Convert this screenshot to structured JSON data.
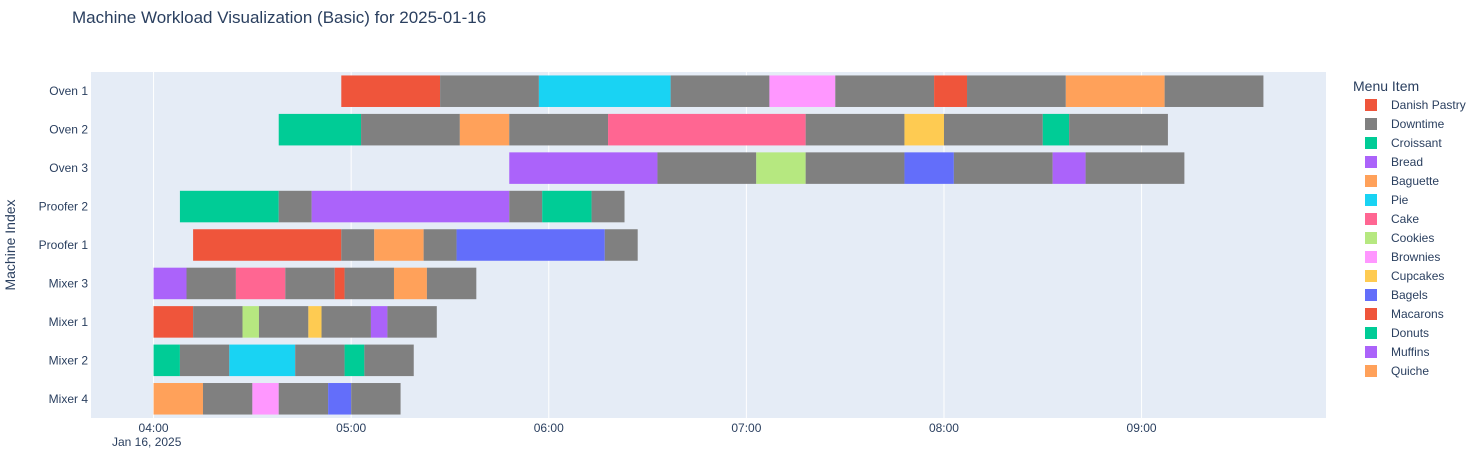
{
  "chart_data": {
    "type": "gantt",
    "title": "Machine Workload Visualization (Basic) for 2025-01-16",
    "xlabel": "",
    "ylabel": "Machine Index",
    "x_ticks": [
      "04:00",
      "05:00",
      "06:00",
      "07:00",
      "08:00",
      "09:00"
    ],
    "x_date_label": "Jan 16, 2025",
    "x_range": [
      "03:41",
      "09:56"
    ],
    "grid": true,
    "legend_title": "Menu Item",
    "legend_position": "right",
    "machines": [
      "Oven 1",
      "Oven 2",
      "Oven 3",
      "Proofer 2",
      "Proofer 1",
      "Mixer 3",
      "Mixer 1",
      "Mixer 2",
      "Mixer 4"
    ],
    "legend": [
      {
        "name": "Danish Pastry",
        "color": "#EF553B"
      },
      {
        "name": "Downtime",
        "color": "#808080"
      },
      {
        "name": "Croissant",
        "color": "#00CC96"
      },
      {
        "name": "Bread",
        "color": "#AB63FA"
      },
      {
        "name": "Baguette",
        "color": "#FFA15A"
      },
      {
        "name": "Pie",
        "color": "#19D3F3"
      },
      {
        "name": "Cake",
        "color": "#FF6692"
      },
      {
        "name": "Cookies",
        "color": "#B6E880"
      },
      {
        "name": "Brownies",
        "color": "#FF97FF"
      },
      {
        "name": "Cupcakes",
        "color": "#FECB52"
      },
      {
        "name": "Bagels",
        "color": "#636EFA"
      },
      {
        "name": "Macarons",
        "color": "#EF553B"
      },
      {
        "name": "Donuts",
        "color": "#00CC96"
      },
      {
        "name": "Muffins",
        "color": "#AB63FA"
      },
      {
        "name": "Quiche",
        "color": "#FFA15A"
      }
    ],
    "tasks": [
      {
        "machine": "Oven 1",
        "item": "Danish Pastry",
        "start": "04:57",
        "end": "05:27"
      },
      {
        "machine": "Oven 1",
        "item": "Downtime",
        "start": "05:27",
        "end": "05:57"
      },
      {
        "machine": "Oven 1",
        "item": "Pie",
        "start": "05:57",
        "end": "06:37"
      },
      {
        "machine": "Oven 1",
        "item": "Downtime",
        "start": "06:37",
        "end": "07:07"
      },
      {
        "machine": "Oven 1",
        "item": "Brownies",
        "start": "07:07",
        "end": "07:27"
      },
      {
        "machine": "Oven 1",
        "item": "Downtime",
        "start": "07:27",
        "end": "07:57"
      },
      {
        "machine": "Oven 1",
        "item": "Macarons",
        "start": "07:57",
        "end": "08:07"
      },
      {
        "machine": "Oven 1",
        "item": "Downtime",
        "start": "08:07",
        "end": "08:37"
      },
      {
        "machine": "Oven 1",
        "item": "Quiche",
        "start": "08:37",
        "end": "09:07"
      },
      {
        "machine": "Oven 1",
        "item": "Downtime",
        "start": "09:07",
        "end": "09:37"
      },
      {
        "machine": "Oven 2",
        "item": "Croissant",
        "start": "04:38",
        "end": "05:03"
      },
      {
        "machine": "Oven 2",
        "item": "Downtime",
        "start": "05:03",
        "end": "05:33"
      },
      {
        "machine": "Oven 2",
        "item": "Baguette",
        "start": "05:33",
        "end": "05:48"
      },
      {
        "machine": "Oven 2",
        "item": "Downtime",
        "start": "05:48",
        "end": "06:18"
      },
      {
        "machine": "Oven 2",
        "item": "Cake",
        "start": "06:18",
        "end": "07:18"
      },
      {
        "machine": "Oven 2",
        "item": "Downtime",
        "start": "07:18",
        "end": "07:48"
      },
      {
        "machine": "Oven 2",
        "item": "Cupcakes",
        "start": "07:48",
        "end": "08:00"
      },
      {
        "machine": "Oven 2",
        "item": "Downtime",
        "start": "08:00",
        "end": "08:30"
      },
      {
        "machine": "Oven 2",
        "item": "Donuts",
        "start": "08:30",
        "end": "08:38"
      },
      {
        "machine": "Oven 2",
        "item": "Downtime",
        "start": "08:38",
        "end": "09:08"
      },
      {
        "machine": "Oven 3",
        "item": "Bread",
        "start": "05:48",
        "end": "06:33"
      },
      {
        "machine": "Oven 3",
        "item": "Downtime",
        "start": "06:33",
        "end": "07:03"
      },
      {
        "machine": "Oven 3",
        "item": "Cookies",
        "start": "07:03",
        "end": "07:18"
      },
      {
        "machine": "Oven 3",
        "item": "Downtime",
        "start": "07:18",
        "end": "07:48"
      },
      {
        "machine": "Oven 3",
        "item": "Bagels",
        "start": "07:48",
        "end": "08:03"
      },
      {
        "machine": "Oven 3",
        "item": "Downtime",
        "start": "08:03",
        "end": "08:33"
      },
      {
        "machine": "Oven 3",
        "item": "Muffins",
        "start": "08:33",
        "end": "08:43"
      },
      {
        "machine": "Oven 3",
        "item": "Downtime",
        "start": "08:43",
        "end": "09:13"
      },
      {
        "machine": "Proofer 2",
        "item": "Croissant",
        "start": "04:08",
        "end": "04:38"
      },
      {
        "machine": "Proofer 2",
        "item": "Downtime",
        "start": "04:38",
        "end": "04:48"
      },
      {
        "machine": "Proofer 2",
        "item": "Bread",
        "start": "04:48",
        "end": "05:48"
      },
      {
        "machine": "Proofer 2",
        "item": "Downtime",
        "start": "05:48",
        "end": "05:58"
      },
      {
        "machine": "Proofer 2",
        "item": "Donuts",
        "start": "05:58",
        "end": "06:13"
      },
      {
        "machine": "Proofer 2",
        "item": "Downtime",
        "start": "06:13",
        "end": "06:23"
      },
      {
        "machine": "Proofer 1",
        "item": "Danish Pastry",
        "start": "04:12",
        "end": "04:57"
      },
      {
        "machine": "Proofer 1",
        "item": "Downtime",
        "start": "04:57",
        "end": "05:07"
      },
      {
        "machine": "Proofer 1",
        "item": "Baguette",
        "start": "05:07",
        "end": "05:22"
      },
      {
        "machine": "Proofer 1",
        "item": "Downtime",
        "start": "05:22",
        "end": "05:32"
      },
      {
        "machine": "Proofer 1",
        "item": "Bagels",
        "start": "05:32",
        "end": "06:17"
      },
      {
        "machine": "Proofer 1",
        "item": "Downtime",
        "start": "06:17",
        "end": "06:27"
      },
      {
        "machine": "Mixer 3",
        "item": "Muffins",
        "start": "04:00",
        "end": "04:10"
      },
      {
        "machine": "Mixer 3",
        "item": "Downtime",
        "start": "04:10",
        "end": "04:25"
      },
      {
        "machine": "Mixer 3",
        "item": "Cake",
        "start": "04:25",
        "end": "04:40"
      },
      {
        "machine": "Mixer 3",
        "item": "Downtime",
        "start": "04:40",
        "end": "04:55"
      },
      {
        "machine": "Mixer 3",
        "item": "Macarons",
        "start": "04:55",
        "end": "04:58"
      },
      {
        "machine": "Mixer 3",
        "item": "Downtime",
        "start": "04:58",
        "end": "05:13"
      },
      {
        "machine": "Mixer 3",
        "item": "Quiche",
        "start": "05:13",
        "end": "05:23"
      },
      {
        "machine": "Mixer 3",
        "item": "Downtime",
        "start": "05:23",
        "end": "05:38"
      },
      {
        "machine": "Mixer 1",
        "item": "Danish Pastry",
        "start": "04:00",
        "end": "04:12"
      },
      {
        "machine": "Mixer 1",
        "item": "Downtime",
        "start": "04:12",
        "end": "04:27"
      },
      {
        "machine": "Mixer 1",
        "item": "Cookies",
        "start": "04:27",
        "end": "04:32"
      },
      {
        "machine": "Mixer 1",
        "item": "Downtime",
        "start": "04:32",
        "end": "04:47"
      },
      {
        "machine": "Mixer 1",
        "item": "Cupcakes",
        "start": "04:47",
        "end": "04:51"
      },
      {
        "machine": "Mixer 1",
        "item": "Downtime",
        "start": "04:51",
        "end": "05:06"
      },
      {
        "machine": "Mixer 1",
        "item": "Muffins",
        "start": "05:06",
        "end": "05:11"
      },
      {
        "machine": "Mixer 1",
        "item": "Downtime",
        "start": "05:11",
        "end": "05:26"
      },
      {
        "machine": "Mixer 2",
        "item": "Croissant",
        "start": "04:00",
        "end": "04:08"
      },
      {
        "machine": "Mixer 2",
        "item": "Downtime",
        "start": "04:08",
        "end": "04:23"
      },
      {
        "machine": "Mixer 2",
        "item": "Pie",
        "start": "04:23",
        "end": "04:43"
      },
      {
        "machine": "Mixer 2",
        "item": "Downtime",
        "start": "04:43",
        "end": "04:58"
      },
      {
        "machine": "Mixer 2",
        "item": "Donuts",
        "start": "04:58",
        "end": "05:04"
      },
      {
        "machine": "Mixer 2",
        "item": "Downtime",
        "start": "05:04",
        "end": "05:19"
      },
      {
        "machine": "Mixer 4",
        "item": "Baguette",
        "start": "04:00",
        "end": "04:15"
      },
      {
        "machine": "Mixer 4",
        "item": "Downtime",
        "start": "04:15",
        "end": "04:30"
      },
      {
        "machine": "Mixer 4",
        "item": "Brownies",
        "start": "04:30",
        "end": "04:38"
      },
      {
        "machine": "Mixer 4",
        "item": "Downtime",
        "start": "04:38",
        "end": "04:53"
      },
      {
        "machine": "Mixer 4",
        "item": "Bagels",
        "start": "04:53",
        "end": "05:00"
      },
      {
        "machine": "Mixer 4",
        "item": "Downtime",
        "start": "05:00",
        "end": "05:15"
      }
    ]
  }
}
